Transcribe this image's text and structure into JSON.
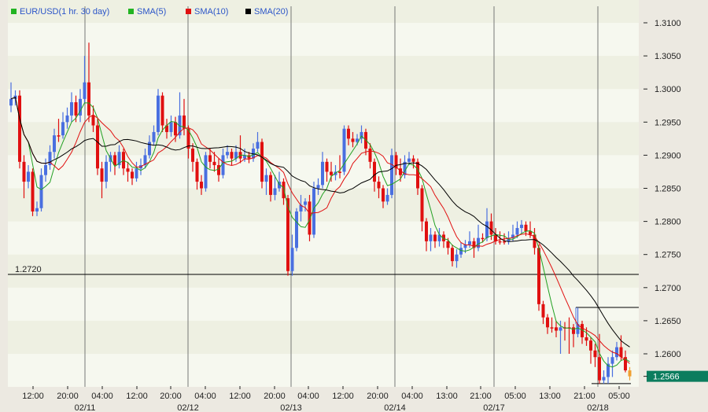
{
  "chart_data": {
    "type": "candlestick",
    "title": "",
    "legend": {
      "placement": "top-left",
      "items": [
        {
          "label": "EUR/USD(1 hr.  30 day)",
          "color": "#22b422"
        },
        {
          "label": "SMA(5)",
          "color": "#22b422"
        },
        {
          "label": "SMA(10)",
          "color": "#e01010"
        },
        {
          "label": "SMA(20)",
          "color": "#000000"
        }
      ]
    },
    "colors": {
      "up": "#4a6fe0",
      "down": "#e01010",
      "last": "#f0a030",
      "sma5": "#22a022",
      "sma10": "#e01010",
      "sma20": "#000000",
      "last_badge": "#0b7d5e"
    },
    "ylim": [
      1.255,
      1.3125
    ],
    "y_ticks": [
      "1.2600",
      "1.2650",
      "1.2700",
      "1.2750",
      "1.2800",
      "1.2850",
      "1.2900",
      "1.2950",
      "1.3000",
      "1.3050",
      "1.3100"
    ],
    "x_time_labels": [
      "12:00",
      "20:00",
      "04:00",
      "12:00",
      "20:00",
      "04:00",
      "12:00",
      "20:00",
      "04:00",
      "12:00",
      "20:00",
      "04:00",
      "13:00",
      "21:00",
      "05:00",
      "13:00",
      "21:00",
      "05:00"
    ],
    "x_date_labels": [
      "02/11",
      "02/12",
      "02/13",
      "02/14",
      "02/17",
      "02/18"
    ],
    "horizontal_line": {
      "value": 1.272,
      "label": "1.2720"
    },
    "marker_lines": [
      1.267,
      1.2555
    ],
    "last_price": "1.2566",
    "sma_periods": [
      5,
      10,
      20
    ],
    "ohlc_columns": [
      "open",
      "high",
      "low",
      "close"
    ],
    "ohlc": [
      [
        1.2975,
        1.301,
        1.2965,
        1.2985
      ],
      [
        1.2985,
        1.2998,
        1.2975,
        1.299
      ],
      [
        1.299,
        1.2998,
        1.288,
        1.289
      ],
      [
        1.289,
        1.29,
        1.2835,
        1.286
      ],
      [
        1.286,
        1.2885,
        1.285,
        1.2875
      ],
      [
        1.2875,
        1.288,
        1.2808,
        1.2815
      ],
      [
        1.2815,
        1.283,
        1.2808,
        1.282
      ],
      [
        1.282,
        1.288,
        1.2815,
        1.287
      ],
      [
        1.287,
        1.2895,
        1.286,
        1.2885
      ],
      [
        1.2885,
        1.2915,
        1.2878,
        1.2905
      ],
      [
        1.2905,
        1.294,
        1.2895,
        1.293
      ],
      [
        1.293,
        1.2955,
        1.292,
        1.293
      ],
      [
        1.293,
        1.2965,
        1.2925,
        1.295
      ],
      [
        1.295,
        1.2972,
        1.294,
        1.296
      ],
      [
        1.296,
        1.2995,
        1.295,
        1.298
      ],
      [
        1.298,
        1.299,
        1.295,
        1.296
      ],
      [
        1.296,
        1.3,
        1.295,
        1.2985
      ],
      [
        1.2985,
        1.305,
        1.2978,
        1.301
      ],
      [
        1.301,
        1.307,
        1.295,
        1.296
      ],
      [
        1.296,
        1.2975,
        1.2935,
        1.2945
      ],
      [
        1.2945,
        1.2955,
        1.287,
        1.288
      ],
      [
        1.288,
        1.289,
        1.2835,
        1.286
      ],
      [
        1.286,
        1.29,
        1.285,
        1.289
      ],
      [
        1.289,
        1.2905,
        1.2875,
        1.29
      ],
      [
        1.29,
        1.2905,
        1.287,
        1.2885
      ],
      [
        1.2885,
        1.2915,
        1.288,
        1.2905
      ],
      [
        1.2905,
        1.291,
        1.287,
        1.288
      ],
      [
        1.288,
        1.289,
        1.286,
        1.2875
      ],
      [
        1.2875,
        1.288,
        1.2855,
        1.2865
      ],
      [
        1.2865,
        1.289,
        1.286,
        1.288
      ],
      [
        1.288,
        1.2895,
        1.287,
        1.2885
      ],
      [
        1.2885,
        1.291,
        1.288,
        1.29
      ],
      [
        1.29,
        1.293,
        1.2895,
        1.292
      ],
      [
        1.292,
        1.2945,
        1.2915,
        1.2935
      ],
      [
        1.2935,
        1.3,
        1.293,
        1.299
      ],
      [
        1.299,
        1.2995,
        1.2935,
        1.2945
      ],
      [
        1.2945,
        1.2955,
        1.2925,
        1.2935
      ],
      [
        1.2935,
        1.296,
        1.2928,
        1.295
      ],
      [
        1.295,
        1.2958,
        1.292,
        1.293
      ],
      [
        1.293,
        1.2995,
        1.2925,
        1.296
      ],
      [
        1.296,
        1.2985,
        1.293,
        1.294
      ],
      [
        1.294,
        1.2945,
        1.2895,
        1.291
      ],
      [
        1.291,
        1.2918,
        1.2875,
        1.289
      ],
      [
        1.289,
        1.2895,
        1.2848,
        1.286
      ],
      [
        1.286,
        1.287,
        1.284,
        1.285
      ],
      [
        1.285,
        1.2905,
        1.2845,
        1.29
      ],
      [
        1.29,
        1.291,
        1.288,
        1.289
      ],
      [
        1.289,
        1.2905,
        1.2875,
        1.2885
      ],
      [
        1.2885,
        1.2895,
        1.286,
        1.287
      ],
      [
        1.287,
        1.291,
        1.2865,
        1.29
      ],
      [
        1.29,
        1.2915,
        1.2895,
        1.2905
      ],
      [
        1.2905,
        1.291,
        1.2885,
        1.2895
      ],
      [
        1.2895,
        1.2915,
        1.289,
        1.2905
      ],
      [
        1.2905,
        1.293,
        1.2888,
        1.2895
      ],
      [
        1.2895,
        1.291,
        1.289,
        1.29
      ],
      [
        1.29,
        1.2905,
        1.2888,
        1.2895
      ],
      [
        1.2895,
        1.2918,
        1.289,
        1.291
      ],
      [
        1.291,
        1.2935,
        1.2905,
        1.292
      ],
      [
        1.292,
        1.2925,
        1.285,
        1.286
      ],
      [
        1.286,
        1.288,
        1.284,
        1.287
      ],
      [
        1.287,
        1.2875,
        1.283,
        1.284
      ],
      [
        1.284,
        1.287,
        1.2832,
        1.285
      ],
      [
        1.285,
        1.2875,
        1.2845,
        1.286
      ],
      [
        1.286,
        1.2865,
        1.2825,
        1.2835
      ],
      [
        1.2835,
        1.284,
        1.2718,
        1.2725
      ],
      [
        1.2725,
        1.278,
        1.2718,
        1.276
      ],
      [
        1.276,
        1.282,
        1.2755,
        1.2815
      ],
      [
        1.2815,
        1.284,
        1.28,
        1.2825
      ],
      [
        1.2825,
        1.2835,
        1.2815,
        1.283
      ],
      [
        1.283,
        1.284,
        1.277,
        1.278
      ],
      [
        1.278,
        1.286,
        1.2775,
        1.285
      ],
      [
        1.285,
        1.2865,
        1.284,
        1.2855
      ],
      [
        1.2855,
        1.2905,
        1.285,
        1.289
      ],
      [
        1.289,
        1.2895,
        1.286,
        1.2875
      ],
      [
        1.2875,
        1.289,
        1.286,
        1.287
      ],
      [
        1.287,
        1.2885,
        1.2862,
        1.2875
      ],
      [
        1.2875,
        1.29,
        1.2865,
        1.2875
      ],
      [
        1.2875,
        1.2945,
        1.287,
        1.294
      ],
      [
        1.294,
        1.2945,
        1.2915,
        1.2925
      ],
      [
        1.2925,
        1.2935,
        1.2912,
        1.292
      ],
      [
        1.292,
        1.2932,
        1.2915,
        1.2925
      ],
      [
        1.2925,
        1.2945,
        1.2918,
        1.2935
      ],
      [
        1.2935,
        1.294,
        1.29,
        1.291
      ],
      [
        1.291,
        1.2918,
        1.288,
        1.289
      ],
      [
        1.289,
        1.2895,
        1.2845,
        1.286
      ],
      [
        1.286,
        1.2868,
        1.2835,
        1.285
      ],
      [
        1.285,
        1.2855,
        1.282,
        1.283
      ],
      [
        1.283,
        1.285,
        1.2825,
        1.284
      ],
      [
        1.284,
        1.291,
        1.2835,
        1.29
      ],
      [
        1.29,
        1.2905,
        1.287,
        1.288
      ],
      [
        1.288,
        1.2895,
        1.286,
        1.287
      ],
      [
        1.287,
        1.29,
        1.2865,
        1.289
      ],
      [
        1.289,
        1.2905,
        1.2885,
        1.2895
      ],
      [
        1.2895,
        1.29,
        1.288,
        1.289
      ],
      [
        1.289,
        1.2895,
        1.284,
        1.285
      ],
      [
        1.285,
        1.2855,
        1.2785,
        1.28
      ],
      [
        1.28,
        1.2805,
        1.2755,
        1.277
      ],
      [
        1.277,
        1.279,
        1.2755,
        1.278
      ],
      [
        1.278,
        1.2785,
        1.276,
        1.277
      ],
      [
        1.277,
        1.279,
        1.2762,
        1.278
      ],
      [
        1.278,
        1.2785,
        1.276,
        1.277
      ],
      [
        1.277,
        1.2775,
        1.275,
        1.276
      ],
      [
        1.276,
        1.2765,
        1.2732,
        1.274
      ],
      [
        1.274,
        1.2758,
        1.273,
        1.275
      ],
      [
        1.275,
        1.2768,
        1.2745,
        1.276
      ],
      [
        1.276,
        1.2772,
        1.2752,
        1.2765
      ],
      [
        1.2765,
        1.2785,
        1.276,
        1.277
      ],
      [
        1.277,
        1.2775,
        1.2745,
        1.276
      ],
      [
        1.276,
        1.2795,
        1.2755,
        1.2775
      ],
      [
        1.2775,
        1.2782,
        1.2768,
        1.2775
      ],
      [
        1.2775,
        1.282,
        1.277,
        1.28
      ],
      [
        1.28,
        1.2812,
        1.2772,
        1.278
      ],
      [
        1.278,
        1.279,
        1.2765,
        1.277
      ],
      [
        1.277,
        1.2785,
        1.2765,
        1.277
      ],
      [
        1.277,
        1.2782,
        1.2765,
        1.277
      ],
      [
        1.277,
        1.2785,
        1.2765,
        1.2775
      ],
      [
        1.2775,
        1.2795,
        1.277,
        1.278
      ],
      [
        1.278,
        1.28,
        1.2775,
        1.279
      ],
      [
        1.279,
        1.2802,
        1.2782,
        1.2795
      ],
      [
        1.2795,
        1.28,
        1.2778,
        1.2785
      ],
      [
        1.2785,
        1.28,
        1.2775,
        1.278
      ],
      [
        1.278,
        1.279,
        1.275,
        1.276
      ],
      [
        1.276,
        1.2765,
        1.2665,
        1.2675
      ],
      [
        1.2675,
        1.268,
        1.2645,
        1.2655
      ],
      [
        1.2655,
        1.266,
        1.263,
        1.264
      ],
      [
        1.264,
        1.2655,
        1.2632,
        1.264
      ],
      [
        1.264,
        1.265,
        1.2625,
        1.2635
      ],
      [
        1.2635,
        1.265,
        1.26,
        1.264
      ],
      [
        1.264,
        1.2648,
        1.262,
        1.264
      ],
      [
        1.264,
        1.2655,
        1.26,
        1.264
      ],
      [
        1.264,
        1.2645,
        1.261,
        1.263
      ],
      [
        1.263,
        1.267,
        1.2625,
        1.2645
      ],
      [
        1.2645,
        1.265,
        1.2615,
        1.2625
      ],
      [
        1.2625,
        1.264,
        1.2612,
        1.262
      ],
      [
        1.262,
        1.2625,
        1.2585,
        1.2605
      ],
      [
        1.2605,
        1.2615,
        1.258,
        1.2595
      ],
      [
        1.2595,
        1.263,
        1.2555,
        1.256
      ],
      [
        1.256,
        1.2575,
        1.2555,
        1.2565
      ],
      [
        1.2565,
        1.2595,
        1.2555,
        1.2585
      ],
      [
        1.2585,
        1.2605,
        1.2565,
        1.2595
      ],
      [
        1.2595,
        1.2618,
        1.259,
        1.261
      ],
      [
        1.261,
        1.2628,
        1.259,
        1.2595
      ],
      [
        1.2595,
        1.2605,
        1.2572,
        1.2575
      ],
      [
        1.2575,
        1.258,
        1.256,
        1.2566
      ]
    ]
  }
}
